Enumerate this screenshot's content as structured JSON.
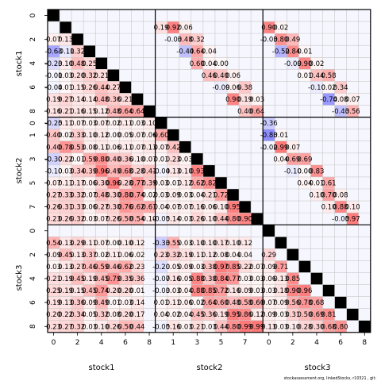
{
  "chart_data": {
    "type": "heatmap",
    "title": "",
    "blocks": [
      "stock1",
      "stock2",
      "stock3"
    ],
    "tick_labels": [
      "0",
      "1",
      "2",
      "3",
      "4",
      "5",
      "6",
      "7",
      "8"
    ],
    "x_tick_labels_shown": [
      [
        "0",
        "2",
        "4",
        "6",
        "8"
      ],
      [
        "1",
        "3",
        "5",
        "7"
      ],
      [
        "0",
        "2",
        "4",
        "6",
        "8"
      ]
    ],
    "y_tick_labels_shown": [
      [
        "0",
        "2",
        "4",
        "6",
        "8"
      ],
      [
        "0",
        "1",
        "3",
        "5",
        "7"
      ],
      [
        "0",
        "2",
        "4",
        "6",
        "8"
      ]
    ],
    "footer": "stockassessment.org, linkedStocks,  r10321 ,  git:",
    "colors": {
      "positive": "#f07878",
      "negative": "#7878f0",
      "diagonal": "#000000",
      "grid": "#c8c8c8",
      "block_border": "#000000"
    },
    "blocks_data": [
      {
        "row": 0,
        "col": 0,
        "values": [
          [
            null
          ],
          [
            null,
            null
          ],
          [
            0.07,
            0.13,
            null
          ],
          [
            -0.63,
            -0.11,
            0.32,
            null
          ],
          [
            -0.23,
            0.1,
            0.48,
            0.25,
            null
          ],
          [
            -0.01,
            0.03,
            0.2,
            0.32,
            0.21,
            null
          ],
          [
            -0.04,
            0.01,
            0.15,
            0.26,
            0.44,
            0.27,
            null
          ],
          [
            0.19,
            0.27,
            0.14,
            0.14,
            0.48,
            0.36,
            0.21,
            null
          ],
          [
            0.16,
            0.21,
            0.16,
            0.15,
            0.12,
            0.48,
            0.64,
            0.64,
            null
          ]
        ]
      },
      {
        "row": 0,
        "col": 1,
        "values": [
          [],
          [
            0.19,
            0.92,
            0.06
          ],
          [
            null,
            -0.03,
            0.48,
            0.32
          ],
          [
            null,
            null,
            -0.44,
            0.64,
            0.04
          ],
          [
            null,
            null,
            null,
            0.6,
            0.04,
            0.0
          ],
          [
            null,
            null,
            null,
            null,
            0.46,
            0.4,
            0.06
          ],
          [
            null,
            null,
            null,
            null,
            null,
            -0.09,
            0.06,
            0.38
          ],
          [
            null,
            null,
            null,
            null,
            null,
            null,
            0.9,
            0.19,
            0.03
          ],
          [
            null,
            null,
            null,
            null,
            null,
            null,
            null,
            0.4,
            0.64
          ]
        ]
      },
      {
        "row": 0,
        "col": 2,
        "values": [
          [],
          [
            0.9,
            0.02
          ],
          [
            -0.03,
            0.8,
            0.49
          ],
          [
            null,
            -0.52,
            0.84,
            0.01
          ],
          [
            null,
            null,
            -0.09,
            0.9,
            0.02
          ],
          [
            null,
            null,
            null,
            0.01,
            0.44,
            0.58
          ],
          [
            null,
            null,
            null,
            null,
            -0.1,
            0.02,
            0.34
          ],
          [
            null,
            null,
            null,
            null,
            null,
            -0.74,
            0.08,
            0.07
          ],
          [
            null,
            null,
            null,
            null,
            null,
            null,
            -0.43,
            0.56
          ]
        ]
      },
      {
        "row": 1,
        "col": 0,
        "values": [
          [
            -0.25,
            0.11,
            0.07,
            0.03,
            0.07,
            0.02,
            0.11,
            0.03,
            0.1
          ],
          [
            0.4,
            0.02,
            0.33,
            0.1,
            0.12,
            0.0,
            0.05,
            0.07,
            0.06
          ],
          [
            0.4,
            0.78,
            0.53,
            0.08,
            0.11,
            0.06,
            0.11,
            0.07,
            0.13
          ],
          [
            -0.3,
            0.22,
            0.01,
            0.59,
            0.8,
            0.4,
            0.36,
            0.1,
            0.07
          ],
          [
            -0.1,
            0.03,
            0.34,
            0.39,
            0.96,
            0.49,
            0.68,
            0.28,
            0.41
          ],
          [
            0.07,
            0.11,
            0.17,
            0.06,
            0.3,
            0.96,
            0.28,
            0.77,
            0.39
          ],
          [
            0.27,
            0.33,
            0.32,
            0.07,
            0.48,
            0.3,
            0.8,
            0.74,
            0.02
          ],
          [
            0.26,
            0.31,
            0.33,
            0.06,
            0.27,
            0.3,
            0.76,
            0.62,
            0.61
          ],
          [
            0.23,
            0.26,
            0.32,
            0.03,
            0.07,
            0.26,
            0.5,
            0.54,
            0.1
          ]
        ]
      },
      {
        "row": 1,
        "col": 1,
        "values": [
          [
            null
          ],
          [
            0.6,
            null
          ],
          [
            0.07,
            0.42,
            null
          ],
          [
            0.01,
            0.23,
            0.03,
            null
          ],
          [
            -0.04,
            0.13,
            0.1,
            0.93,
            null
          ],
          [
            0.03,
            0.01,
            0.12,
            0.62,
            0.82,
            null
          ],
          [
            0.03,
            0.09,
            0.03,
            0.04,
            0.21,
            0.72,
            null
          ],
          [
            0.04,
            0.07,
            0.07,
            0.16,
            0.06,
            0.1,
            0.95,
            null
          ],
          [
            -0.05,
            0.14,
            0.03,
            0.26,
            0.1,
            0.44,
            0.8,
            0.9,
            null
          ]
        ]
      },
      {
        "row": 1,
        "col": 2,
        "values": [
          [
            -0.36
          ],
          [
            -0.83,
            0.01
          ],
          [
            -0.02,
            0.99,
            0.07
          ],
          [
            null,
            0.04,
            0.69,
            0.69
          ],
          [
            null,
            null,
            -0.1,
            0.0,
            0.83
          ],
          [
            null,
            null,
            null,
            0.04,
            0.01,
            0.61
          ],
          [
            null,
            null,
            null,
            null,
            0.1,
            0.7,
            0.08
          ],
          [
            null,
            null,
            null,
            null,
            null,
            0.1,
            0.88,
            0.1
          ],
          [
            null,
            null,
            null,
            null,
            null,
            null,
            -0.05,
            0.97
          ]
        ]
      },
      {
        "row": 2,
        "col": 0,
        "values": [
          [],
          [
            0.54,
            0.13,
            0.29,
            0.11,
            0.07,
            0.0,
            0.1,
            0.12
          ],
          [
            0.09,
            0.45,
            0.13,
            0.37,
            0.02,
            0.11,
            0.06,
            0.02
          ],
          [
            0.03,
            0.13,
            0.27,
            0.46,
            0.59,
            0.46,
            0.62,
            0.23
          ],
          [
            0.21,
            0.19,
            0.45,
            0.19,
            0.45,
            0.79,
            0.35,
            0.36
          ],
          [
            0.25,
            0.19,
            0.15,
            0.45,
            0.74,
            0.2,
            0.2,
            0.01
          ],
          [
            0.19,
            0.13,
            0.36,
            0.09,
            0.49,
            0.01,
            0.03,
            0.14
          ],
          [
            0.2,
            0.22,
            0.34,
            0.05,
            0.32,
            0.08,
            0.2,
            0.17
          ],
          [
            0.23,
            0.27,
            0.32,
            0.03,
            0.1,
            0.26,
            0.5,
            0.44
          ]
        ]
      },
      {
        "row": 2,
        "col": 1,
        "values": [
          [],
          [
            -0.33,
            0.55,
            0.03,
            0.1,
            0.1,
            0.17,
            0.1,
            0.12
          ],
          [
            0.23,
            0.32,
            0.19,
            0.11,
            0.12,
            0.08,
            0.04,
            0.04
          ],
          [
            -0.2,
            0.05,
            0.09,
            0.03,
            0.38,
            0.97,
            0.85,
            0.22,
            0.07
          ],
          [
            -0.07,
            0.16,
            0.05,
            0.88,
            0.38,
            0.84,
            0.77,
            0.03,
            0.03
          ],
          [
            -0.03,
            0.03,
            0.04,
            0.88,
            0.85,
            0.72,
            0.16,
            0.09,
            0.03
          ],
          [
            0.01,
            0.11,
            0.06,
            0.02,
            0.64,
            0.6,
            0.48,
            0.58,
            0.6
          ],
          [
            0.04,
            0.02,
            0.04,
            0.45,
            0.36,
            0.19,
            0.95,
            0.86,
            0.12
          ],
          [
            -0.05,
            0.16,
            0.03,
            0.21,
            0.03,
            0.44,
            0.8,
            0.99,
            0.99
          ]
        ]
      },
      {
        "row": 2,
        "col": 2,
        "values": [
          [
            null
          ],
          [
            null,
            null
          ],
          [
            0.29,
            null
          ],
          [
            0.09,
            0.71,
            null
          ],
          [
            0.06,
            0.13,
            0.85,
            null
          ],
          [
            0.03,
            0.18,
            0.9,
            0.96,
            null
          ],
          [
            0.07,
            0.09,
            0.56,
            0.78,
            0.68,
            null
          ],
          [
            0.09,
            0.03,
            0.31,
            0.5,
            0.69,
            0.81,
            null
          ],
          [
            0.13,
            0.03,
            0.1,
            0.28,
            0.3,
            0.68,
            0.8,
            null
          ]
        ]
      }
    ]
  }
}
